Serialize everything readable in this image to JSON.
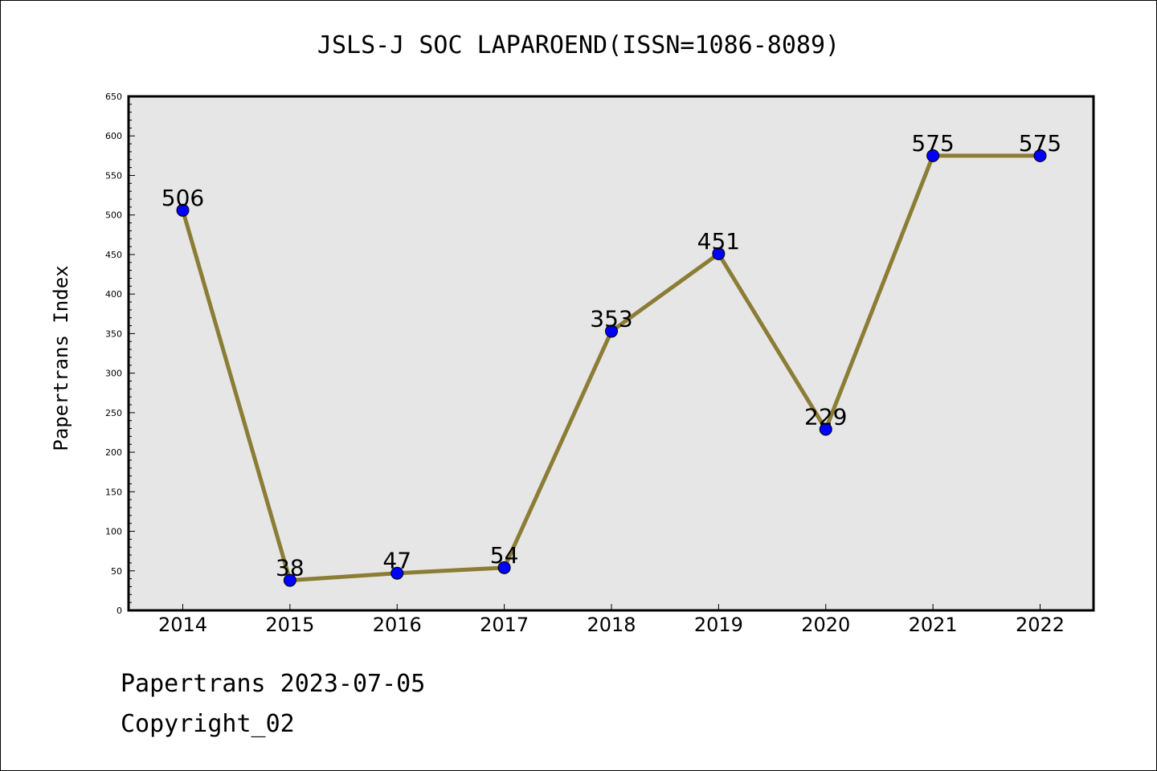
{
  "chart_data": {
    "type": "line",
    "title": "JSLS-J SOC LAPAROEND(ISSN=1086-8089)",
    "xlabel": "",
    "ylabel": "Papertrans Index",
    "categories": [
      "2014",
      "2015",
      "2016",
      "2017",
      "2018",
      "2019",
      "2020",
      "2021",
      "2022"
    ],
    "series": [
      {
        "values": [
          506,
          38,
          47,
          54,
          353,
          451,
          229,
          575,
          575
        ]
      }
    ],
    "ylim": [
      0,
      650
    ],
    "yticks": [
      0,
      50,
      100,
      150,
      200,
      250,
      300,
      350,
      400,
      450,
      500,
      550,
      600,
      650
    ],
    "grid": false,
    "line_color": "#8b7d35",
    "marker_color": "#0000ff",
    "plot_background": "#e6e6e6"
  },
  "footer": {
    "date_text": "Papertrans 2023-07-05",
    "copyright_text": "Copyright_02"
  }
}
